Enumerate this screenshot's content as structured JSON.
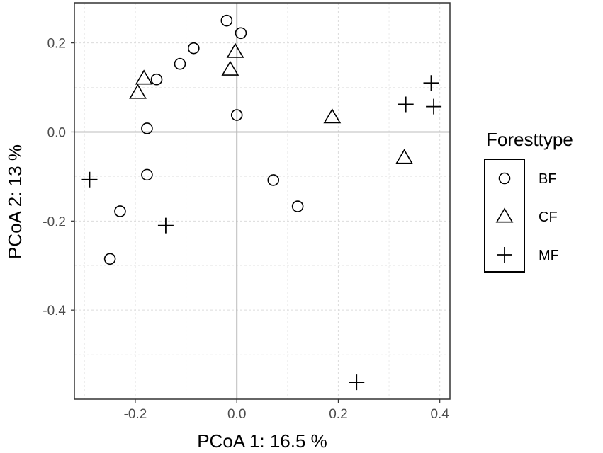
{
  "chart_data": {
    "type": "scatter",
    "xlabel": "PCoA 1:  16.5 %",
    "ylabel": "PCoA 2:  13 %",
    "xlim": [
      -0.32,
      0.42
    ],
    "ylim": [
      -0.6,
      0.29
    ],
    "xticks": [
      -0.2,
      0.0,
      0.2,
      0.4
    ],
    "xtick_labels": [
      "-0.2",
      "0.0",
      "0.2",
      "0.4"
    ],
    "yticks": [
      -0.4,
      -0.2,
      0.0,
      0.2
    ],
    "ytick_labels": [
      "-0.4",
      "-0.2",
      "0.0",
      "0.2"
    ],
    "reference_lines": {
      "x": 0,
      "y": 0
    },
    "grid": true,
    "legend": {
      "title": "Foresttype",
      "position": "right"
    },
    "series": [
      {
        "name": "BF",
        "marker": "circle",
        "points": [
          [
            -0.02,
            0.25
          ],
          [
            0.008,
            0.222
          ],
          [
            -0.085,
            0.188
          ],
          [
            -0.112,
            0.153
          ],
          [
            -0.158,
            0.118
          ],
          [
            0.0,
            0.038
          ],
          [
            -0.177,
            0.008
          ],
          [
            -0.177,
            -0.096
          ],
          [
            0.072,
            -0.108
          ],
          [
            0.12,
            -0.167
          ],
          [
            -0.23,
            -0.178
          ],
          [
            -0.25,
            -0.285
          ]
        ]
      },
      {
        "name": "CF",
        "marker": "triangle",
        "points": [
          [
            -0.003,
            0.18
          ],
          [
            -0.013,
            0.14
          ],
          [
            -0.183,
            0.12
          ],
          [
            -0.195,
            0.088
          ],
          [
            0.188,
            0.033
          ],
          [
            0.33,
            -0.058
          ]
        ]
      },
      {
        "name": "MF",
        "marker": "plus",
        "points": [
          [
            0.383,
            0.11
          ],
          [
            0.333,
            0.062
          ],
          [
            0.388,
            0.057
          ],
          [
            -0.29,
            -0.107
          ],
          [
            -0.14,
            -0.21
          ],
          [
            0.236,
            -0.562
          ]
        ]
      }
    ]
  }
}
